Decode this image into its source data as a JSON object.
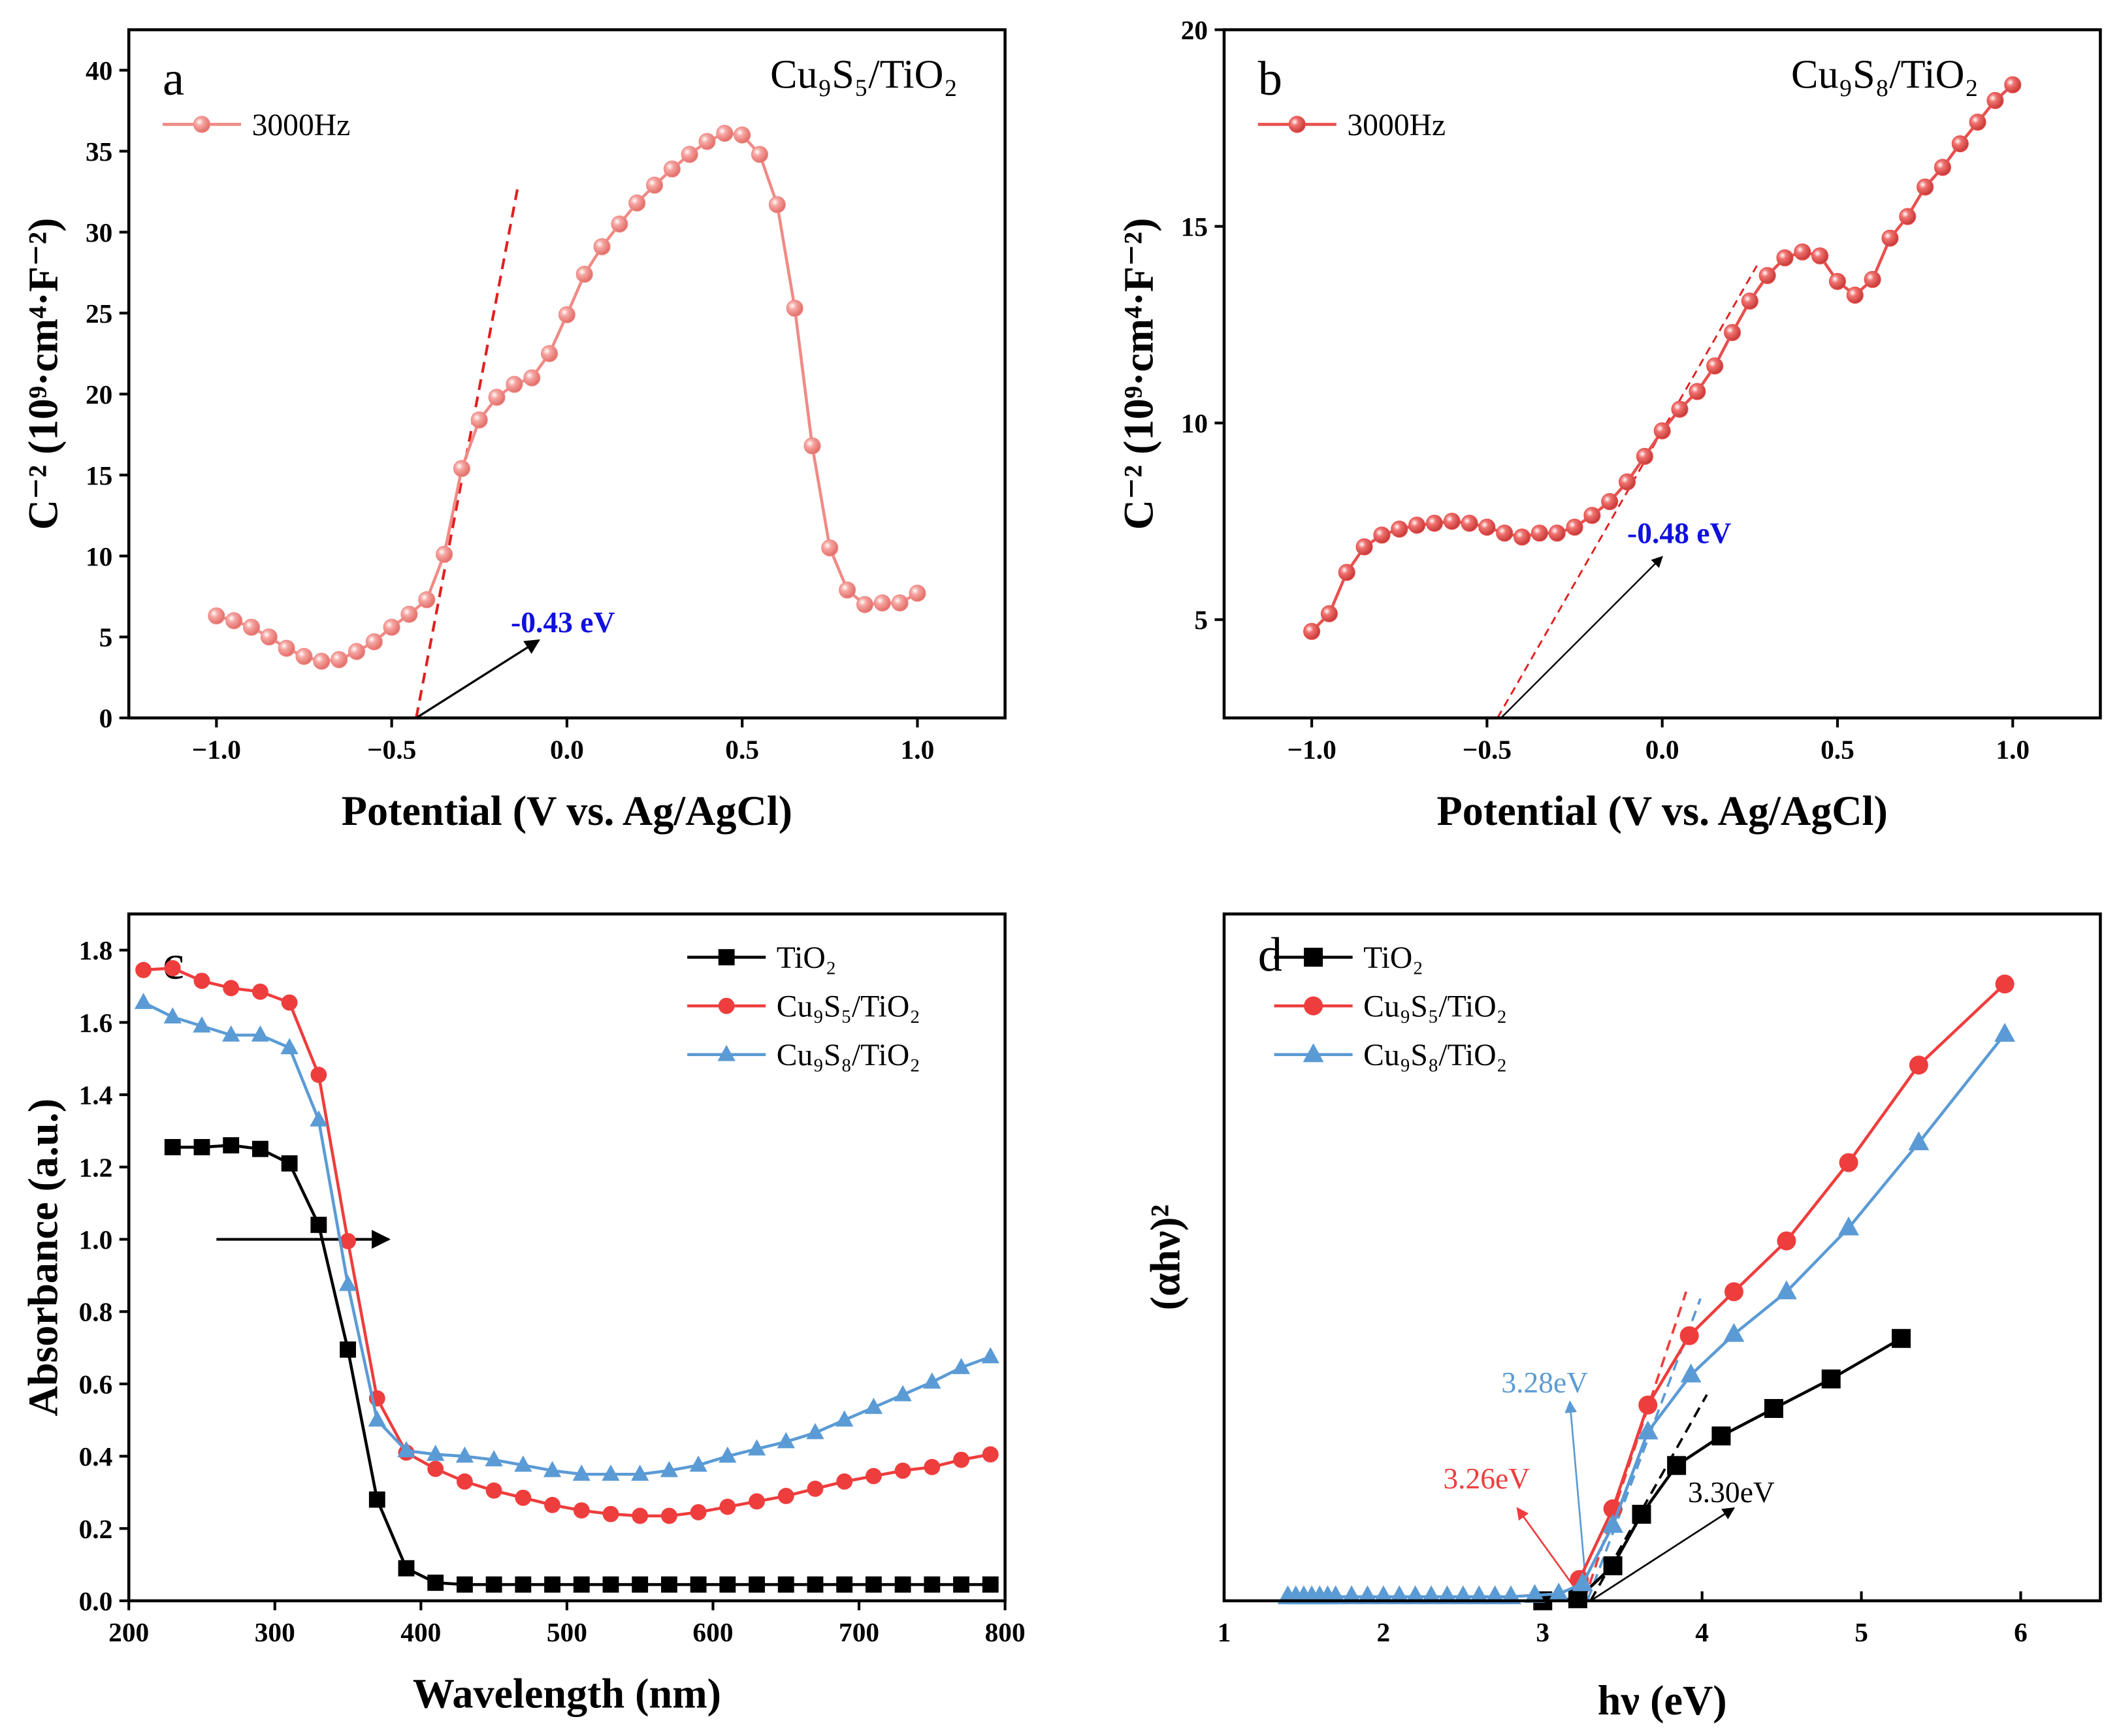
{
  "chart_data": [
    {
      "type": "line",
      "panel_label": "a",
      "title": "Cu₉S₅/TiO₂",
      "xlabel": "Potential (V vs. Ag/AgCl)",
      "ylabel": "C⁻² (10⁹·cm⁴·F⁻²)",
      "xlim": [
        -1.25,
        1.25
      ],
      "ylim": [
        0,
        42.5
      ],
      "xticks": [
        -1.0,
        -0.5,
        0.0,
        0.5,
        1.0
      ],
      "xtick_labels": [
        "−1.0",
        "−0.5",
        "0.0",
        "0.5",
        "1.0"
      ],
      "yticks": [
        0,
        5,
        10,
        15,
        20,
        25,
        30,
        35,
        40
      ],
      "ytick_labels": [
        "0",
        "5",
        "10",
        "15",
        "20",
        "25",
        "30",
        "35",
        "40"
      ],
      "legend": "top-left",
      "annotation": "-0.43 eV",
      "fit_intercept": -0.43,
      "series": [
        {
          "name": "3000Hz",
          "color": "#f08a86",
          "marker": "circle",
          "x": [
            -1.0,
            -0.95,
            -0.9,
            -0.85,
            -0.8,
            -0.75,
            -0.7,
            -0.65,
            -0.6,
            -0.55,
            -0.5,
            -0.45,
            -0.4,
            -0.35,
            -0.3,
            -0.25,
            -0.2,
            -0.15,
            -0.1,
            -0.05,
            0.0,
            0.05,
            0.1,
            0.15,
            0.2,
            0.25,
            0.3,
            0.35,
            0.4,
            0.45,
            0.5,
            0.55,
            0.6,
            0.65,
            0.7,
            0.75,
            0.8,
            0.85,
            0.9,
            0.95,
            1.0
          ],
          "y": [
            6.3,
            6.0,
            5.6,
            5.0,
            4.3,
            3.8,
            3.5,
            3.6,
            4.1,
            4.7,
            5.6,
            6.4,
            7.3,
            10.1,
            15.4,
            18.4,
            19.8,
            20.6,
            21.0,
            22.5,
            24.9,
            27.4,
            29.1,
            30.5,
            31.8,
            32.9,
            33.9,
            34.8,
            35.6,
            36.1,
            36.0,
            34.8,
            31.7,
            25.3,
            16.8,
            10.5,
            7.9,
            7.0,
            7.1,
            7.1,
            7.7
          ]
        }
      ]
    },
    {
      "type": "line",
      "panel_label": "b",
      "title": "Cu₉S₈/TiO₂",
      "xlabel": "Potential (V vs. Ag/AgCl)",
      "ylabel": "C⁻² (10⁹·cm⁴·F⁻²)",
      "xlim": [
        -1.25,
        1.25
      ],
      "ylim": [
        2.5,
        20
      ],
      "xticks": [
        -1.0,
        -0.5,
        0.0,
        0.5,
        1.0
      ],
      "xtick_labels": [
        "−1.0",
        "−0.5",
        "0.0",
        "0.5",
        "1.0"
      ],
      "yticks": [
        5,
        10,
        15,
        20
      ],
      "ytick_labels": [
        "5",
        "10",
        "15",
        "20"
      ],
      "legend": "top-left",
      "annotation": "-0.48 eV",
      "fit_intercept": -0.48,
      "series": [
        {
          "name": "3000Hz",
          "color": "#e8504e",
          "marker": "circle",
          "x": [
            -1.0,
            -0.95,
            -0.9,
            -0.85,
            -0.8,
            -0.75,
            -0.7,
            -0.65,
            -0.6,
            -0.55,
            -0.5,
            -0.45,
            -0.4,
            -0.35,
            -0.3,
            -0.25,
            -0.2,
            -0.15,
            -0.1,
            -0.05,
            0.0,
            0.05,
            0.1,
            0.15,
            0.2,
            0.25,
            0.3,
            0.35,
            0.4,
            0.45,
            0.5,
            0.55,
            0.6,
            0.65,
            0.7,
            0.75,
            0.8,
            0.85,
            0.9,
            0.95,
            1.0
          ],
          "y": [
            4.7,
            5.15,
            6.2,
            6.85,
            7.15,
            7.3,
            7.4,
            7.45,
            7.5,
            7.45,
            7.35,
            7.2,
            7.1,
            7.2,
            7.2,
            7.35,
            7.65,
            8.0,
            8.5,
            9.15,
            9.8,
            10.35,
            10.8,
            11.45,
            12.3,
            13.1,
            13.75,
            14.2,
            14.35,
            14.25,
            13.6,
            13.25,
            13.65,
            14.7,
            15.25,
            16.0,
            16.5,
            17.1,
            17.65,
            18.2,
            18.6
          ]
        }
      ]
    },
    {
      "type": "line",
      "panel_label": "c",
      "xlabel": "Wavelength (nm)",
      "ylabel": "Absorbance (a.u.)",
      "xlim": [
        200,
        800
      ],
      "ylim": [
        0,
        1.9
      ],
      "xticks": [
        200,
        300,
        400,
        500,
        600,
        700,
        800
      ],
      "xtick_labels": [
        "200",
        "300",
        "400",
        "500",
        "600",
        "700",
        "800"
      ],
      "yticks": [
        0,
        0.2,
        0.4,
        0.6,
        0.8,
        1.0,
        1.2,
        1.4,
        1.6,
        1.8
      ],
      "ytick_labels": [
        "0.0",
        "0.2",
        "0.4",
        "0.6",
        "0.8",
        "1.0",
        "1.2",
        "1.4",
        "1.6",
        "1.8"
      ],
      "legend": "top-right",
      "series": [
        {
          "name": "TiO₂",
          "color": "#000000",
          "marker": "square",
          "x": [
            230,
            250,
            270,
            290,
            310,
            330,
            350,
            370,
            390,
            410,
            430,
            450,
            470,
            490,
            510,
            530,
            550,
            570,
            590,
            610,
            630,
            650,
            670,
            690,
            710,
            730,
            750,
            770,
            790
          ],
          "y": [
            1.255,
            1.255,
            1.26,
            1.25,
            1.21,
            1.04,
            0.695,
            0.28,
            0.09,
            0.05,
            0.045,
            0.045,
            0.045,
            0.045,
            0.045,
            0.045,
            0.045,
            0.045,
            0.045,
            0.045,
            0.045,
            0.045,
            0.045,
            0.045,
            0.045,
            0.045,
            0.045,
            0.045,
            0.045
          ]
        },
        {
          "name": "Cu₉S₅/TiO₂",
          "color": "#ee3d3d",
          "marker": "circle",
          "x": [
            210,
            230,
            250,
            270,
            290,
            310,
            330,
            350,
            370,
            390,
            410,
            430,
            450,
            470,
            490,
            510,
            530,
            550,
            570,
            590,
            610,
            630,
            650,
            670,
            690,
            710,
            730,
            750,
            770,
            790
          ],
          "y": [
            1.745,
            1.75,
            1.715,
            1.695,
            1.685,
            1.655,
            1.455,
            0.995,
            0.56,
            0.41,
            0.365,
            0.33,
            0.305,
            0.285,
            0.265,
            0.25,
            0.24,
            0.235,
            0.235,
            0.245,
            0.26,
            0.275,
            0.29,
            0.31,
            0.33,
            0.345,
            0.36,
            0.37,
            0.39,
            0.405
          ]
        },
        {
          "name": "Cu₉S₈/TiO₂",
          "color": "#5b9bd5",
          "marker": "triangle",
          "x": [
            210,
            230,
            250,
            270,
            290,
            310,
            330,
            350,
            370,
            390,
            410,
            430,
            450,
            470,
            490,
            510,
            530,
            550,
            570,
            590,
            610,
            630,
            650,
            670,
            690,
            710,
            730,
            750,
            770,
            790
          ],
          "y": [
            1.655,
            1.615,
            1.59,
            1.565,
            1.565,
            1.53,
            1.33,
            0.875,
            0.5,
            0.415,
            0.405,
            0.4,
            0.39,
            0.375,
            0.36,
            0.35,
            0.35,
            0.35,
            0.36,
            0.375,
            0.4,
            0.42,
            0.44,
            0.465,
            0.5,
            0.535,
            0.57,
            0.605,
            0.645,
            0.675
          ]
        }
      ]
    },
    {
      "type": "line",
      "panel_label": "d",
      "xlabel": "hν (eV)",
      "ylabel": "(αhν)²",
      "xlim": [
        1,
        6.5
      ],
      "ylim": [
        0,
        100
      ],
      "xticks": [
        1,
        2,
        3,
        4,
        5,
        6
      ],
      "xtick_labels": [
        "1",
        "2",
        "3",
        "4",
        "5",
        "6"
      ],
      "yticks": [],
      "ytick_labels": [],
      "legend": "top-left",
      "annotations": [
        "3.28eV",
        "3.26eV",
        "3.30eV"
      ],
      "band_gaps": {
        "TiO₂": 3.3,
        "Cu₉S₅/TiO₂": 3.26,
        "Cu₉S₈/TiO₂": 3.28
      },
      "series": [
        {
          "name": "TiO₂",
          "color": "#000000",
          "marker": "square",
          "x": [
            3.0,
            3.22,
            3.44,
            3.62,
            3.84,
            4.12,
            4.45,
            4.81,
            5.25
          ],
          "y": [
            0,
            0.3,
            5.1,
            12.6,
            19.7,
            24,
            28,
            32.3,
            38.2
          ]
        },
        {
          "name": "Cu₉S₅/TiO₂",
          "color": "#ee3d3d",
          "marker": "circle",
          "x": [
            3.23,
            3.44,
            3.66,
            3.92,
            4.2,
            4.53,
            4.92,
            5.36,
            5.9
          ],
          "y": [
            3.1,
            13.4,
            28.5,
            38.6,
            45,
            52.4,
            63.8,
            78,
            89.8
          ]
        },
        {
          "name": "Cu₉S₈/TiO₂",
          "color": "#5b9bd5",
          "marker": "triangle",
          "x": [
            1.4,
            1.45,
            1.5,
            1.55,
            1.6,
            1.65,
            1.7,
            1.8,
            1.9,
            2.0,
            2.1,
            2.2,
            2.3,
            2.4,
            2.5,
            2.6,
            2.7,
            2.8,
            2.95,
            3.1,
            3.25,
            3.44,
            3.66,
            3.93,
            4.2,
            4.53,
            4.92,
            5.36,
            5.9
          ],
          "y": [
            0.6,
            0.6,
            0.6,
            0.6,
            0.6,
            0.6,
            0.6,
            0.6,
            0.6,
            0.6,
            0.6,
            0.6,
            0.6,
            0.6,
            0.6,
            0.6,
            0.6,
            0.6,
            0.8,
            1.0,
            2.5,
            11,
            24.6,
            32.9,
            38.8,
            45,
            54.3,
            66.7,
            82.5
          ]
        }
      ]
    }
  ]
}
